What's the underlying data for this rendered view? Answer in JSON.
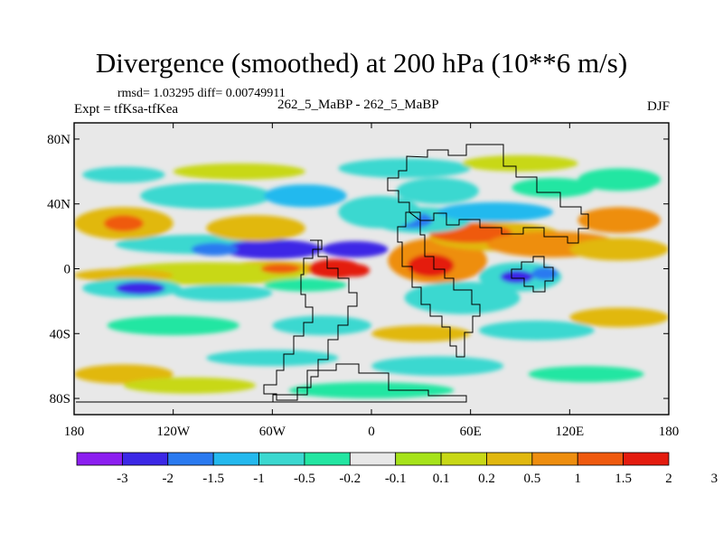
{
  "header": {
    "title": "Divergence (smoothed) at 200 hPa (10**6 m/s)",
    "stats": "rmsd= 1.03295 diff= 0.00749911",
    "expt": "Expt = tfKsa-tfKea",
    "runs": "262_5_MaBP - 262_5_MaBP",
    "season": "DJF"
  },
  "chart_data": {
    "type": "heatmap",
    "title": "Divergence (smoothed) at 200 hPa (10**6 m/s)",
    "subtitle": "262_5_MaBP - 262_5_MaBP",
    "variable": "Divergence (smoothed) at 200 hPa",
    "units": "10**6 m/s",
    "season": "DJF",
    "xlabel": "",
    "ylabel": "",
    "xlim": [
      -180,
      180
    ],
    "ylim": [
      -90,
      90
    ],
    "x_ticks": [
      {
        "value": -180,
        "label": "180"
      },
      {
        "value": -120,
        "label": "120W"
      },
      {
        "value": -60,
        "label": "60W"
      },
      {
        "value": 0,
        "label": "0"
      },
      {
        "value": 60,
        "label": "60E"
      },
      {
        "value": 120,
        "label": "120E"
      },
      {
        "value": 180,
        "label": "180"
      }
    ],
    "y_ticks": [
      {
        "value": 80,
        "label": "80N"
      },
      {
        "value": 40,
        "label": "40N"
      },
      {
        "value": 0,
        "label": "0"
      },
      {
        "value": -40,
        "label": "40S"
      },
      {
        "value": -80,
        "label": "80S"
      }
    ],
    "colorbar": {
      "levels": [
        "-3",
        "-2",
        "-1.5",
        "-1",
        "-0.5",
        "-0.2",
        "-0.1",
        "0.1",
        "0.2",
        "0.5",
        "1",
        "1.5",
        "2",
        "3"
      ],
      "colors": [
        "#8c1ff0",
        "#3c28e6",
        "#2a7af0",
        "#24b9ee",
        "#3bd8d0",
        "#23e6a2",
        "#e8e8e8",
        "#a6e31a",
        "#c8d816",
        "#e1b80f",
        "#ee8e0f",
        "#ef5a0f",
        "#e41c0f"
      ]
    },
    "features": [
      {
        "name": "Africa-Asia continental outline (stepped)",
        "type": "land-outline"
      },
      {
        "name": "South America continental outline (stepped)",
        "type": "land-outline"
      }
    ],
    "blobs": [
      {
        "lon": -60,
        "lat": 0,
        "rx": 28,
        "ry": 5,
        "class": 9
      },
      {
        "lon": -22,
        "lat": 0,
        "rx": 16,
        "ry": 6,
        "class": 12
      },
      {
        "lon": -10,
        "lat": -1,
        "rx": 9,
        "ry": 4,
        "class": 12
      },
      {
        "lon": -100,
        "lat": -3,
        "rx": 60,
        "ry": 7,
        "class": 8
      },
      {
        "lon": -55,
        "lat": 0,
        "rx": 12,
        "ry": 3,
        "class": 11
      },
      {
        "lon": -150,
        "lat": -4,
        "rx": 30,
        "ry": 4,
        "class": 9
      },
      {
        "lon": 40,
        "lat": 5,
        "rx": 30,
        "ry": 14,
        "class": 10
      },
      {
        "lon": 36,
        "lat": 2,
        "rx": 14,
        "ry": 7,
        "class": 12
      },
      {
        "lon": 75,
        "lat": 20,
        "rx": 40,
        "ry": 9,
        "class": 9
      },
      {
        "lon": 60,
        "lat": 22,
        "rx": 25,
        "ry": 6,
        "class": 11
      },
      {
        "lon": 110,
        "lat": 15,
        "rx": 40,
        "ry": 8,
        "class": 10
      },
      {
        "lon": 150,
        "lat": 12,
        "rx": 30,
        "ry": 7,
        "class": 9
      },
      {
        "lon": 90,
        "lat": -5,
        "rx": 25,
        "ry": 9,
        "class": 4
      },
      {
        "lon": 88,
        "lat": -5,
        "rx": 10,
        "ry": 4,
        "class": 1
      },
      {
        "lon": 105,
        "lat": -3,
        "rx": 8,
        "ry": 4,
        "class": 2
      },
      {
        "lon": -100,
        "lat": 15,
        "rx": 55,
        "ry": 6,
        "class": 4
      },
      {
        "lon": -60,
        "lat": 12,
        "rx": 30,
        "ry": 6,
        "class": 1
      },
      {
        "lon": -10,
        "lat": 12,
        "rx": 20,
        "ry": 5,
        "class": 1
      },
      {
        "lon": -95,
        "lat": 12,
        "rx": 14,
        "ry": 4,
        "class": 2
      },
      {
        "lon": -145,
        "lat": -12,
        "rx": 30,
        "ry": 6,
        "class": 4
      },
      {
        "lon": -140,
        "lat": -12,
        "rx": 15,
        "ry": 4,
        "class": 1
      },
      {
        "lon": -90,
        "lat": -15,
        "rx": 30,
        "ry": 5,
        "class": 4
      },
      {
        "lon": -40,
        "lat": -10,
        "rx": 25,
        "ry": 4,
        "class": 5
      },
      {
        "lon": 55,
        "lat": -18,
        "rx": 35,
        "ry": 10,
        "class": 4
      },
      {
        "lon": 30,
        "lat": 30,
        "rx": 30,
        "ry": 8,
        "class": 4
      },
      {
        "lon": 25,
        "lat": 30,
        "rx": 12,
        "ry": 5,
        "class": 2
      },
      {
        "lon": 75,
        "lat": 35,
        "rx": 35,
        "ry": 6,
        "class": 3
      },
      {
        "lon": -150,
        "lat": 28,
        "rx": 30,
        "ry": 10,
        "class": 9
      },
      {
        "lon": -150,
        "lat": 28,
        "rx": 12,
        "ry": 5,
        "class": 11
      },
      {
        "lon": -70,
        "lat": 25,
        "rx": 30,
        "ry": 8,
        "class": 9
      },
      {
        "lon": 40,
        "lat": 48,
        "rx": 25,
        "ry": 8,
        "class": 4
      },
      {
        "lon": 5,
        "lat": 35,
        "rx": 25,
        "ry": 10,
        "class": 4
      },
      {
        "lon": 150,
        "lat": 30,
        "rx": 25,
        "ry": 8,
        "class": 10
      },
      {
        "lon": -100,
        "lat": 45,
        "rx": 40,
        "ry": 8,
        "class": 4
      },
      {
        "lon": -40,
        "lat": 45,
        "rx": 25,
        "ry": 7,
        "class": 3
      },
      {
        "lon": 110,
        "lat": 50,
        "rx": 25,
        "ry": 6,
        "class": 5
      },
      {
        "lon": 150,
        "lat": 55,
        "rx": 25,
        "ry": 7,
        "class": 5
      },
      {
        "lon": -80,
        "lat": 60,
        "rx": 40,
        "ry": 5,
        "class": 8
      },
      {
        "lon": 20,
        "lat": 62,
        "rx": 40,
        "ry": 6,
        "class": 4
      },
      {
        "lon": -150,
        "lat": 58,
        "rx": 25,
        "ry": 5,
        "class": 4
      },
      {
        "lon": 90,
        "lat": 65,
        "rx": 35,
        "ry": 5,
        "class": 8
      },
      {
        "lon": -30,
        "lat": -35,
        "rx": 30,
        "ry": 6,
        "class": 4
      },
      {
        "lon": 30,
        "lat": -40,
        "rx": 30,
        "ry": 5,
        "class": 9
      },
      {
        "lon": 100,
        "lat": -38,
        "rx": 35,
        "ry": 6,
        "class": 4
      },
      {
        "lon": -120,
        "lat": -35,
        "rx": 40,
        "ry": 6,
        "class": 5
      },
      {
        "lon": 150,
        "lat": -30,
        "rx": 30,
        "ry": 6,
        "class": 9
      },
      {
        "lon": -60,
        "lat": -55,
        "rx": 40,
        "ry": 5,
        "class": 4
      },
      {
        "lon": 40,
        "lat": -60,
        "rx": 40,
        "ry": 6,
        "class": 4
      },
      {
        "lon": -150,
        "lat": -65,
        "rx": 30,
        "ry": 6,
        "class": 9
      },
      {
        "lon": 130,
        "lat": -65,
        "rx": 35,
        "ry": 5,
        "class": 5
      },
      {
        "lon": 0,
        "lat": -75,
        "rx": 50,
        "ry": 5,
        "class": 5
      },
      {
        "lon": -110,
        "lat": -72,
        "rx": 40,
        "ry": 5,
        "class": 8
      }
    ]
  }
}
